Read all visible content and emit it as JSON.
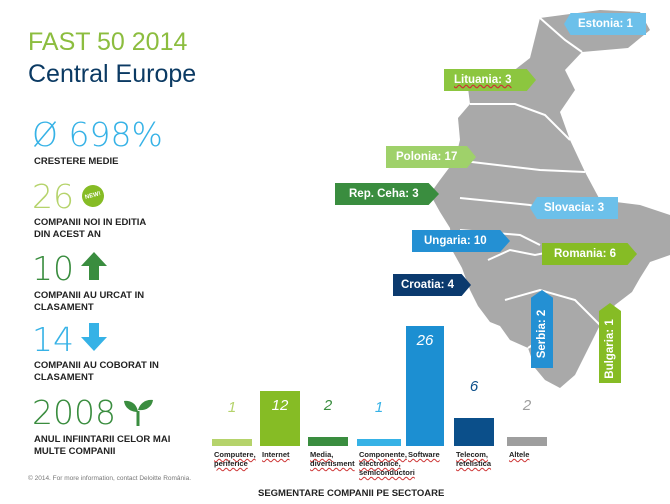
{
  "title": {
    "line1": "FAST 50 2014",
    "line2": "Central Europe"
  },
  "stats": {
    "growth": {
      "value": "Ø 698%",
      "label": "CRESTERE MEDIE"
    },
    "new": {
      "value": "26",
      "badge": "NEW!",
      "label1": "COMPANII NOI IN EDITIA",
      "label2": "DIN ACEST AN"
    },
    "up": {
      "value": "10",
      "label1": "COMPANII AU URCAT IN",
      "label2": "CLASAMENT"
    },
    "down": {
      "value": "14",
      "label1": "COMPANII AU COBORAT IN",
      "label2": "CLASAMENT"
    },
    "year": {
      "value": "2008",
      "label1": "ANUL INFIINTARII CELOR MAI",
      "label2": "MULTE COMPANII"
    }
  },
  "countries": [
    {
      "name": "Estonia: 1"
    },
    {
      "name": "Lituania: 3"
    },
    {
      "name": "Polonia: 17"
    },
    {
      "name": "Rep. Ceha: 3"
    },
    {
      "name": "Slovacia: 3"
    },
    {
      "name": "Ungaria: 10"
    },
    {
      "name": "Romania: 6"
    },
    {
      "name": "Croatia: 4"
    },
    {
      "name": "Serbia: 2"
    },
    {
      "name": "Bulgaria: 1"
    }
  ],
  "chart_data": {
    "type": "bar",
    "title": "SEGMENTARE COMPANII PE SECTOARE",
    "categories": [
      "Computere, periferice",
      "Internet",
      "Media, divertisment",
      "Componente, electronice, semiconductori",
      "Software",
      "Telecom, retelistica",
      "Altele"
    ],
    "values": [
      1,
      12,
      2,
      1,
      26,
      6,
      2
    ],
    "colors": [
      "#b5d36b",
      "#86bc25",
      "#3a8d3f",
      "#36b2e6",
      "#1c8fd2",
      "#0b4f8a",
      "#9e9e9e"
    ],
    "label_lines": [
      [
        "Computere,",
        "periferice"
      ],
      [
        "Internet"
      ],
      [
        "Media,",
        "divertisment"
      ],
      [
        "Componente,",
        "electronice,",
        "semiconductori"
      ],
      [
        "Software"
      ],
      [
        "Telecom,",
        "retelistica"
      ],
      [
        "Altele"
      ]
    ]
  },
  "footer": "© 2014. For more information, contact Deloitte România."
}
